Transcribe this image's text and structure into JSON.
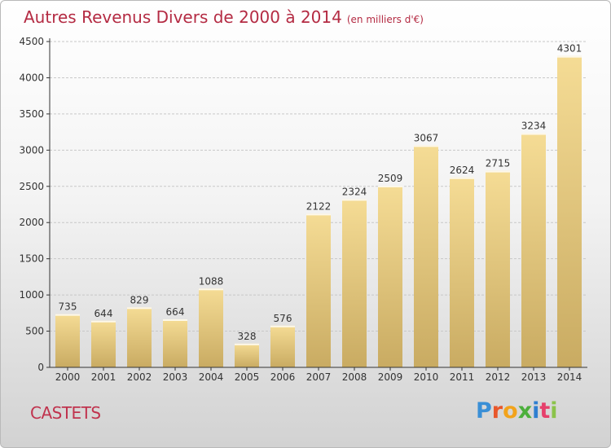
{
  "title": "Autres Revenus Divers de 2000 à 2014",
  "subtitle": "(en milliers d'€)",
  "place_name": "CASTETS",
  "logo": {
    "text": "Proxiti",
    "letter_colors": [
      "#3a8fd6",
      "#e8572b",
      "#f2a31b",
      "#4caf3c",
      "#2f7fd0",
      "#e6406b",
      "#8bc34a"
    ]
  },
  "colors": {
    "title": "#b42b43",
    "bar_light": "#f5dc95",
    "bar_dark": "#c9ab62",
    "axis": "#333333",
    "grid": "#c8c8c8"
  },
  "chart_data": {
    "type": "bar",
    "title": "Autres Revenus Divers de 2000 à 2014",
    "subtitle": "(en milliers d'€)",
    "categories": [
      "2000",
      "2001",
      "2002",
      "2003",
      "2004",
      "2005",
      "2006",
      "2007",
      "2008",
      "2009",
      "2010",
      "2011",
      "2012",
      "2013",
      "2014"
    ],
    "values": [
      735,
      644,
      829,
      664,
      1088,
      328,
      576,
      2122,
      2324,
      2509,
      3067,
      2624,
      2715,
      3234,
      4301
    ],
    "ylim": [
      0,
      4500
    ],
    "yticks": [
      0,
      500,
      1000,
      1500,
      2000,
      2500,
      3000,
      3500,
      4000,
      4500
    ],
    "grid": true,
    "data_labels": true
  }
}
